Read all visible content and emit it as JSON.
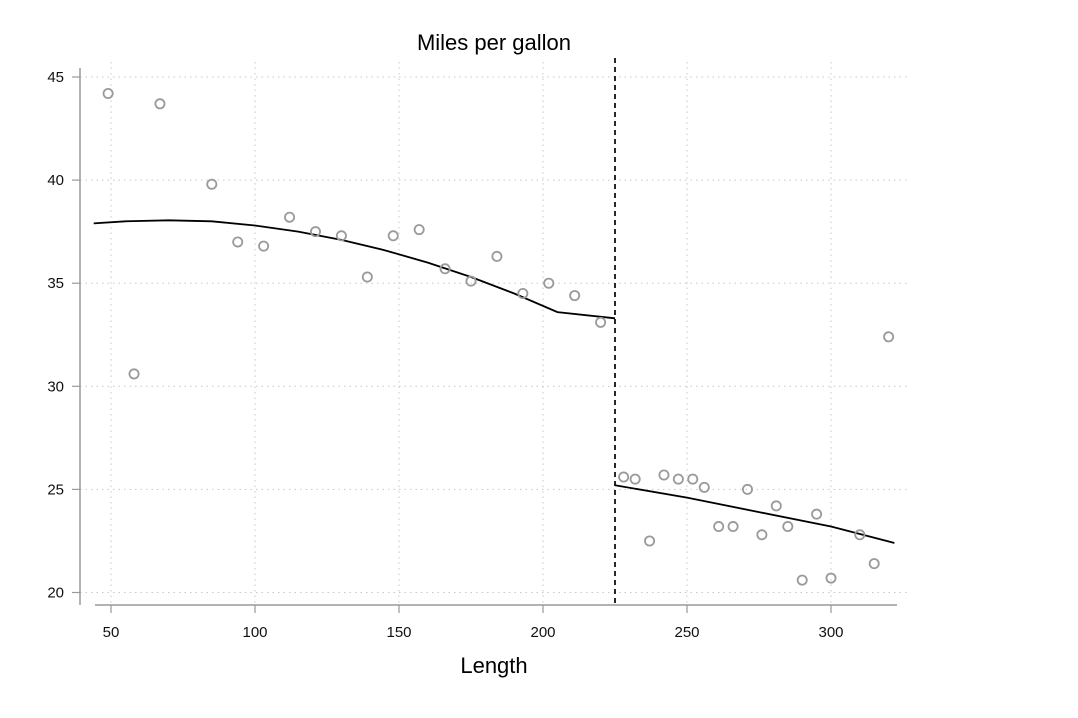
{
  "chart_data": {
    "type": "scatter",
    "title": "Miles per gallon",
    "xlabel": "Length",
    "ylabel": "",
    "xlim": [
      42,
      322
    ],
    "ylim": [
      19.2,
      45.1
    ],
    "xticks": [
      50,
      100,
      150,
      200,
      250,
      300
    ],
    "yticks": [
      20,
      25,
      30,
      35,
      40,
      45
    ],
    "xtick_labels": [
      "50",
      "100",
      "150",
      "200",
      "250",
      "300"
    ],
    "ytick_labels": [
      "20",
      "25",
      "30",
      "35",
      "40",
      "45"
    ],
    "grid": true,
    "cutoff": 225,
    "points": [
      [
        49,
        44.2
      ],
      [
        58,
        30.6
      ],
      [
        67,
        43.7
      ],
      [
        85,
        39.8
      ],
      [
        94,
        37.0
      ],
      [
        103,
        36.8
      ],
      [
        112,
        38.2
      ],
      [
        121,
        37.5
      ],
      [
        130,
        37.3
      ],
      [
        139,
        35.3
      ],
      [
        148,
        37.3
      ],
      [
        157,
        37.6
      ],
      [
        166,
        35.7
      ],
      [
        175,
        35.1
      ],
      [
        184,
        36.3
      ],
      [
        193,
        34.5
      ],
      [
        202,
        35.0
      ],
      [
        211,
        34.4
      ],
      [
        220,
        33.1
      ],
      [
        228,
        25.6
      ],
      [
        232,
        25.5
      ],
      [
        237,
        22.5
      ],
      [
        242,
        25.7
      ],
      [
        247,
        25.5
      ],
      [
        252,
        25.5
      ],
      [
        256,
        25.1
      ],
      [
        261,
        23.2
      ],
      [
        266,
        23.2
      ],
      [
        271,
        25.0
      ],
      [
        276,
        22.8
      ],
      [
        281,
        24.2
      ],
      [
        285,
        23.2
      ],
      [
        290,
        20.6
      ],
      [
        295,
        23.8
      ],
      [
        300,
        20.7
      ],
      [
        310,
        22.8
      ],
      [
        315,
        21.4
      ],
      [
        320,
        32.4
      ]
    ],
    "fit_left": [
      [
        44,
        37.9
      ],
      [
        55,
        38.0
      ],
      [
        70,
        38.05
      ],
      [
        85,
        38.0
      ],
      [
        100,
        37.8
      ],
      [
        115,
        37.5
      ],
      [
        130,
        37.1
      ],
      [
        145,
        36.6
      ],
      [
        160,
        36.0
      ],
      [
        175,
        35.3
      ],
      [
        190,
        34.5
      ],
      [
        205,
        33.6
      ],
      [
        225,
        33.3
      ]
    ],
    "fit_right": [
      [
        225,
        25.2
      ],
      [
        250,
        24.6
      ],
      [
        275,
        23.9
      ],
      [
        300,
        23.2
      ],
      [
        322,
        22.4
      ]
    ]
  }
}
